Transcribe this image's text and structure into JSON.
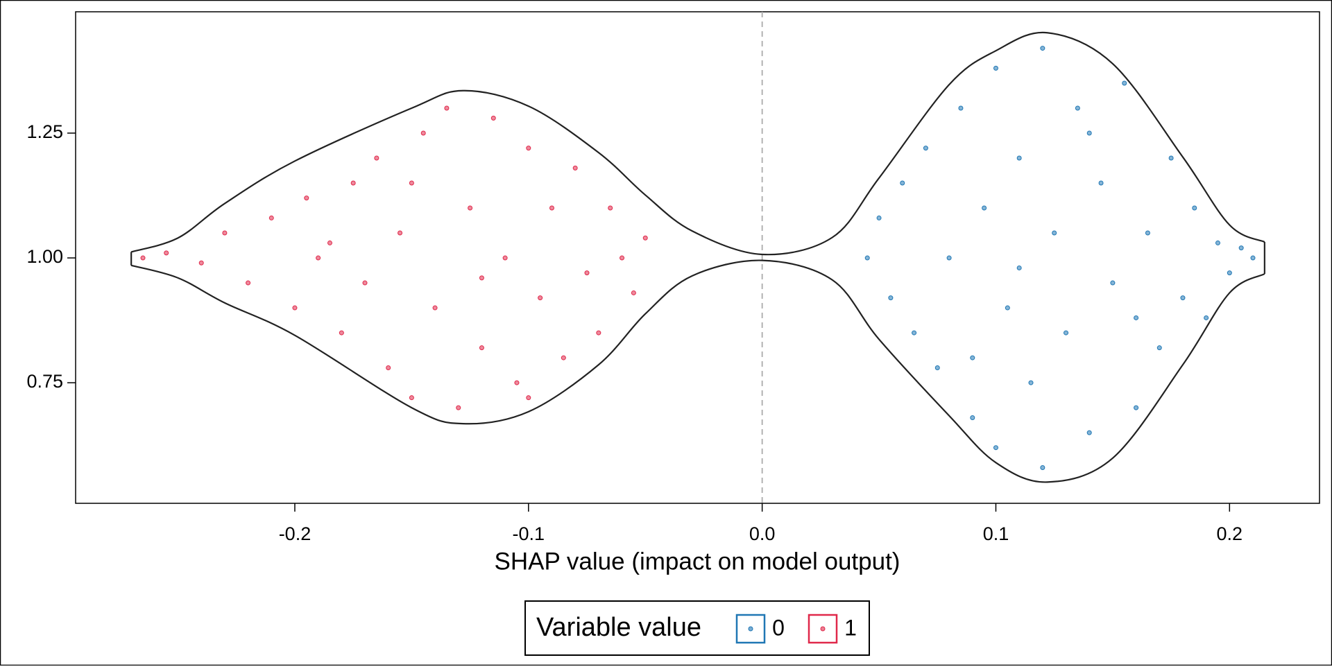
{
  "chart_data": {
    "type": "violin",
    "xlabel": "SHAP value (impact on model output)",
    "legend_title": "Variable value",
    "xlim": [
      -0.2938,
      0.2385
    ],
    "ylim": [
      0.5085,
      1.493
    ],
    "xticks": [
      -0.2,
      -0.1,
      {
        "value": 0,
        "label": "0.0"
      },
      0.1,
      0.2
    ],
    "yticks": [
      {
        "value": 0.75,
        "label": "0.75"
      },
      {
        "value": 1,
        "label": "1.00"
      },
      {
        "value": 1.25,
        "label": "1.25"
      }
    ],
    "vline": 0,
    "outline": {
      "x": [
        -0.27,
        -0.25,
        -0.23,
        -0.2,
        -0.15,
        -0.128,
        -0.1,
        -0.07,
        -0.05,
        -0.03,
        0,
        0.03,
        0.05,
        0.08,
        0.1,
        0.122,
        0.15,
        0.18,
        0.2,
        0.215
      ],
      "upper": [
        1.012,
        1.04,
        1.109,
        1.194,
        1.3,
        1.335,
        1.304,
        1.211,
        1.126,
        1.054,
        1.007,
        1.041,
        1.16,
        1.347,
        1.415,
        1.451,
        1.389,
        1.202,
        1.066,
        1.032
      ],
      "lower": [
        0.985,
        0.96,
        0.91,
        0.845,
        0.7,
        0.668,
        0.692,
        0.786,
        0.888,
        0.964,
        0.995,
        0.956,
        0.837,
        0.684,
        0.59,
        0.551,
        0.599,
        0.786,
        0.93,
        0.968
      ]
    },
    "series": [
      {
        "name": "0",
        "color": "#1f77b4",
        "x": [
          0.045,
          0.05,
          0.055,
          0.06,
          0.065,
          0.07,
          0.075,
          0.08,
          0.085,
          0.09,
          0.095,
          0.1,
          0.1,
          0.105,
          0.11,
          0.115,
          0.12,
          0.12,
          0.125,
          0.13,
          0.135,
          0.14,
          0.145,
          0.15,
          0.155,
          0.16,
          0.165,
          0.17,
          0.175,
          0.18,
          0.185,
          0.19,
          0.195,
          0.2,
          0.205,
          0.21,
          0.11,
          0.14,
          0.09,
          0.16
        ],
        "y": [
          1.0,
          1.08,
          0.92,
          1.15,
          0.85,
          1.22,
          0.78,
          1.0,
          1.3,
          0.68,
          1.1,
          0.62,
          1.38,
          0.9,
          1.2,
          0.75,
          1.42,
          0.58,
          1.05,
          0.85,
          1.3,
          0.65,
          1.15,
          0.95,
          1.35,
          0.7,
          1.05,
          0.82,
          1.2,
          0.92,
          1.1,
          0.88,
          1.03,
          0.97,
          1.02,
          1.0,
          0.98,
          1.25,
          0.8,
          0.88
        ]
      },
      {
        "name": "1",
        "color": "#e0284a",
        "x": [
          -0.265,
          -0.255,
          -0.24,
          -0.23,
          -0.22,
          -0.21,
          -0.2,
          -0.195,
          -0.19,
          -0.18,
          -0.175,
          -0.17,
          -0.165,
          -0.16,
          -0.155,
          -0.15,
          -0.145,
          -0.14,
          -0.135,
          -0.13,
          -0.125,
          -0.12,
          -0.115,
          -0.11,
          -0.105,
          -0.1,
          -0.095,
          -0.09,
          -0.085,
          -0.08,
          -0.075,
          -0.07,
          -0.065,
          -0.06,
          -0.055,
          -0.05,
          -0.185,
          -0.15,
          -0.12,
          -0.1
        ],
        "y": [
          1.0,
          1.01,
          0.99,
          1.05,
          0.95,
          1.08,
          0.9,
          1.12,
          1.0,
          0.85,
          1.15,
          0.95,
          1.2,
          0.78,
          1.05,
          0.72,
          1.25,
          0.9,
          1.3,
          0.7,
          1.1,
          0.82,
          1.28,
          1.0,
          0.75,
          1.22,
          0.92,
          1.1,
          0.8,
          1.18,
          0.97,
          0.85,
          1.1,
          1.0,
          0.93,
          1.04,
          1.03,
          1.15,
          0.96,
          0.72
        ]
      }
    ]
  }
}
